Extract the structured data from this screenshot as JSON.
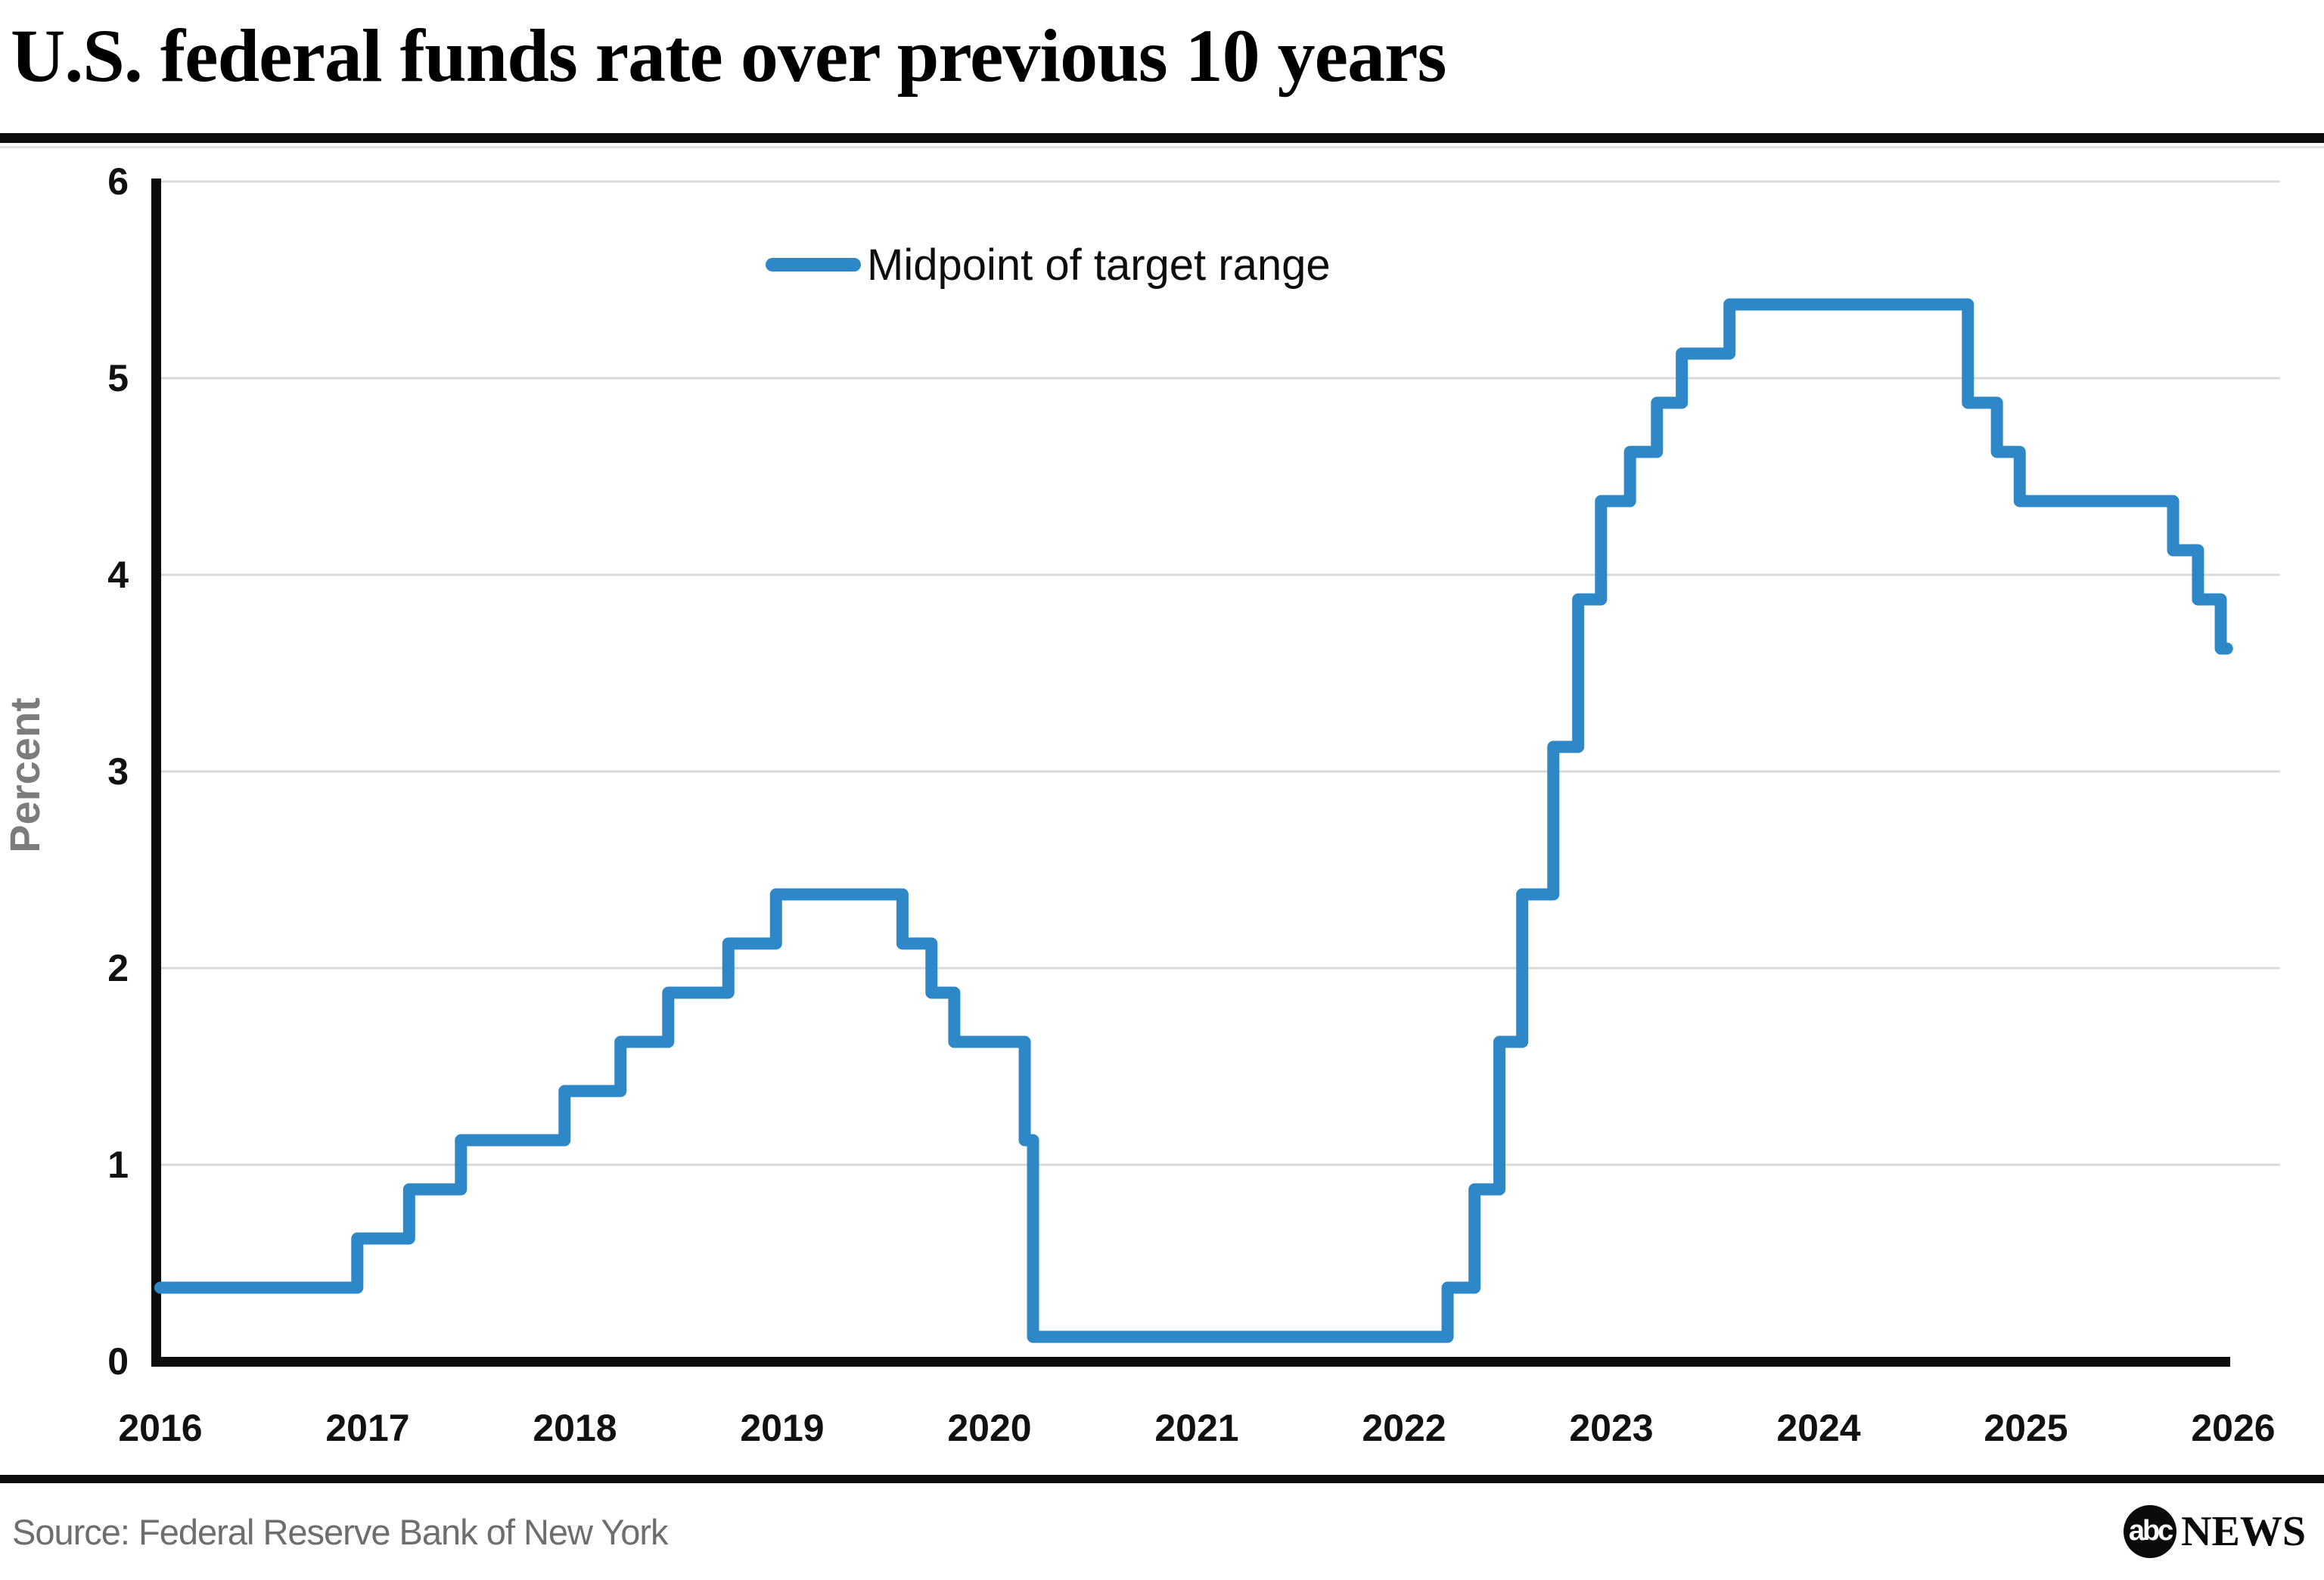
{
  "header": {
    "title": "U.S. federal funds rate over previous 10 years"
  },
  "legend": {
    "label": "Midpoint of target range"
  },
  "footer": {
    "source": "Source: Federal Reserve Bank of New York",
    "logo": {
      "abc": "abc",
      "news": "NEWS"
    }
  },
  "colors": {
    "line": "#2e87c6",
    "grid": "#d9d9d9",
    "axis": "#0d0d0d",
    "tick_text": "#111111",
    "axis_label_text": "#7c7c7c"
  },
  "chart_data": {
    "type": "line",
    "step": true,
    "title": "U.S. federal funds rate over previous 10 years",
    "xlabel": "",
    "ylabel": "Percent",
    "legend_entries": [
      "Midpoint of target range"
    ],
    "legend_position": "top-center-inside",
    "grid": "horizontal-only",
    "xlim": [
      2016,
      2026.2
    ],
    "ylim": [
      0,
      6
    ],
    "x_ticks": [
      2016,
      2017,
      2018,
      2019,
      2020,
      2021,
      2022,
      2023,
      2024,
      2025,
      2026
    ],
    "y_ticks": [
      0,
      1,
      2,
      3,
      4,
      5,
      6
    ],
    "series": [
      {
        "name": "Midpoint of target range",
        "units": "percent",
        "points": [
          [
            2016.0,
            0.375
          ],
          [
            2016.95,
            0.625
          ],
          [
            2017.2,
            0.875
          ],
          [
            2017.45,
            1.125
          ],
          [
            2017.95,
            1.375
          ],
          [
            2018.22,
            1.625
          ],
          [
            2018.45,
            1.875
          ],
          [
            2018.74,
            2.125
          ],
          [
            2018.97,
            2.375
          ],
          [
            2019.58,
            2.125
          ],
          [
            2019.72,
            1.875
          ],
          [
            2019.83,
            1.625
          ],
          [
            2020.17,
            1.125
          ],
          [
            2020.21,
            0.125
          ],
          [
            2022.21,
            0.375
          ],
          [
            2022.34,
            0.875
          ],
          [
            2022.46,
            1.625
          ],
          [
            2022.57,
            2.375
          ],
          [
            2022.72,
            3.125
          ],
          [
            2022.84,
            3.875
          ],
          [
            2022.95,
            4.375
          ],
          [
            2023.09,
            4.625
          ],
          [
            2023.22,
            4.875
          ],
          [
            2023.34,
            5.125
          ],
          [
            2023.57,
            5.375
          ],
          [
            2024.72,
            4.875
          ],
          [
            2024.86,
            4.625
          ],
          [
            2024.97,
            4.375
          ],
          [
            2025.71,
            4.125
          ],
          [
            2025.83,
            3.875
          ],
          [
            2025.94,
            3.625
          ]
        ],
        "end_x": 2025.97
      }
    ]
  }
}
